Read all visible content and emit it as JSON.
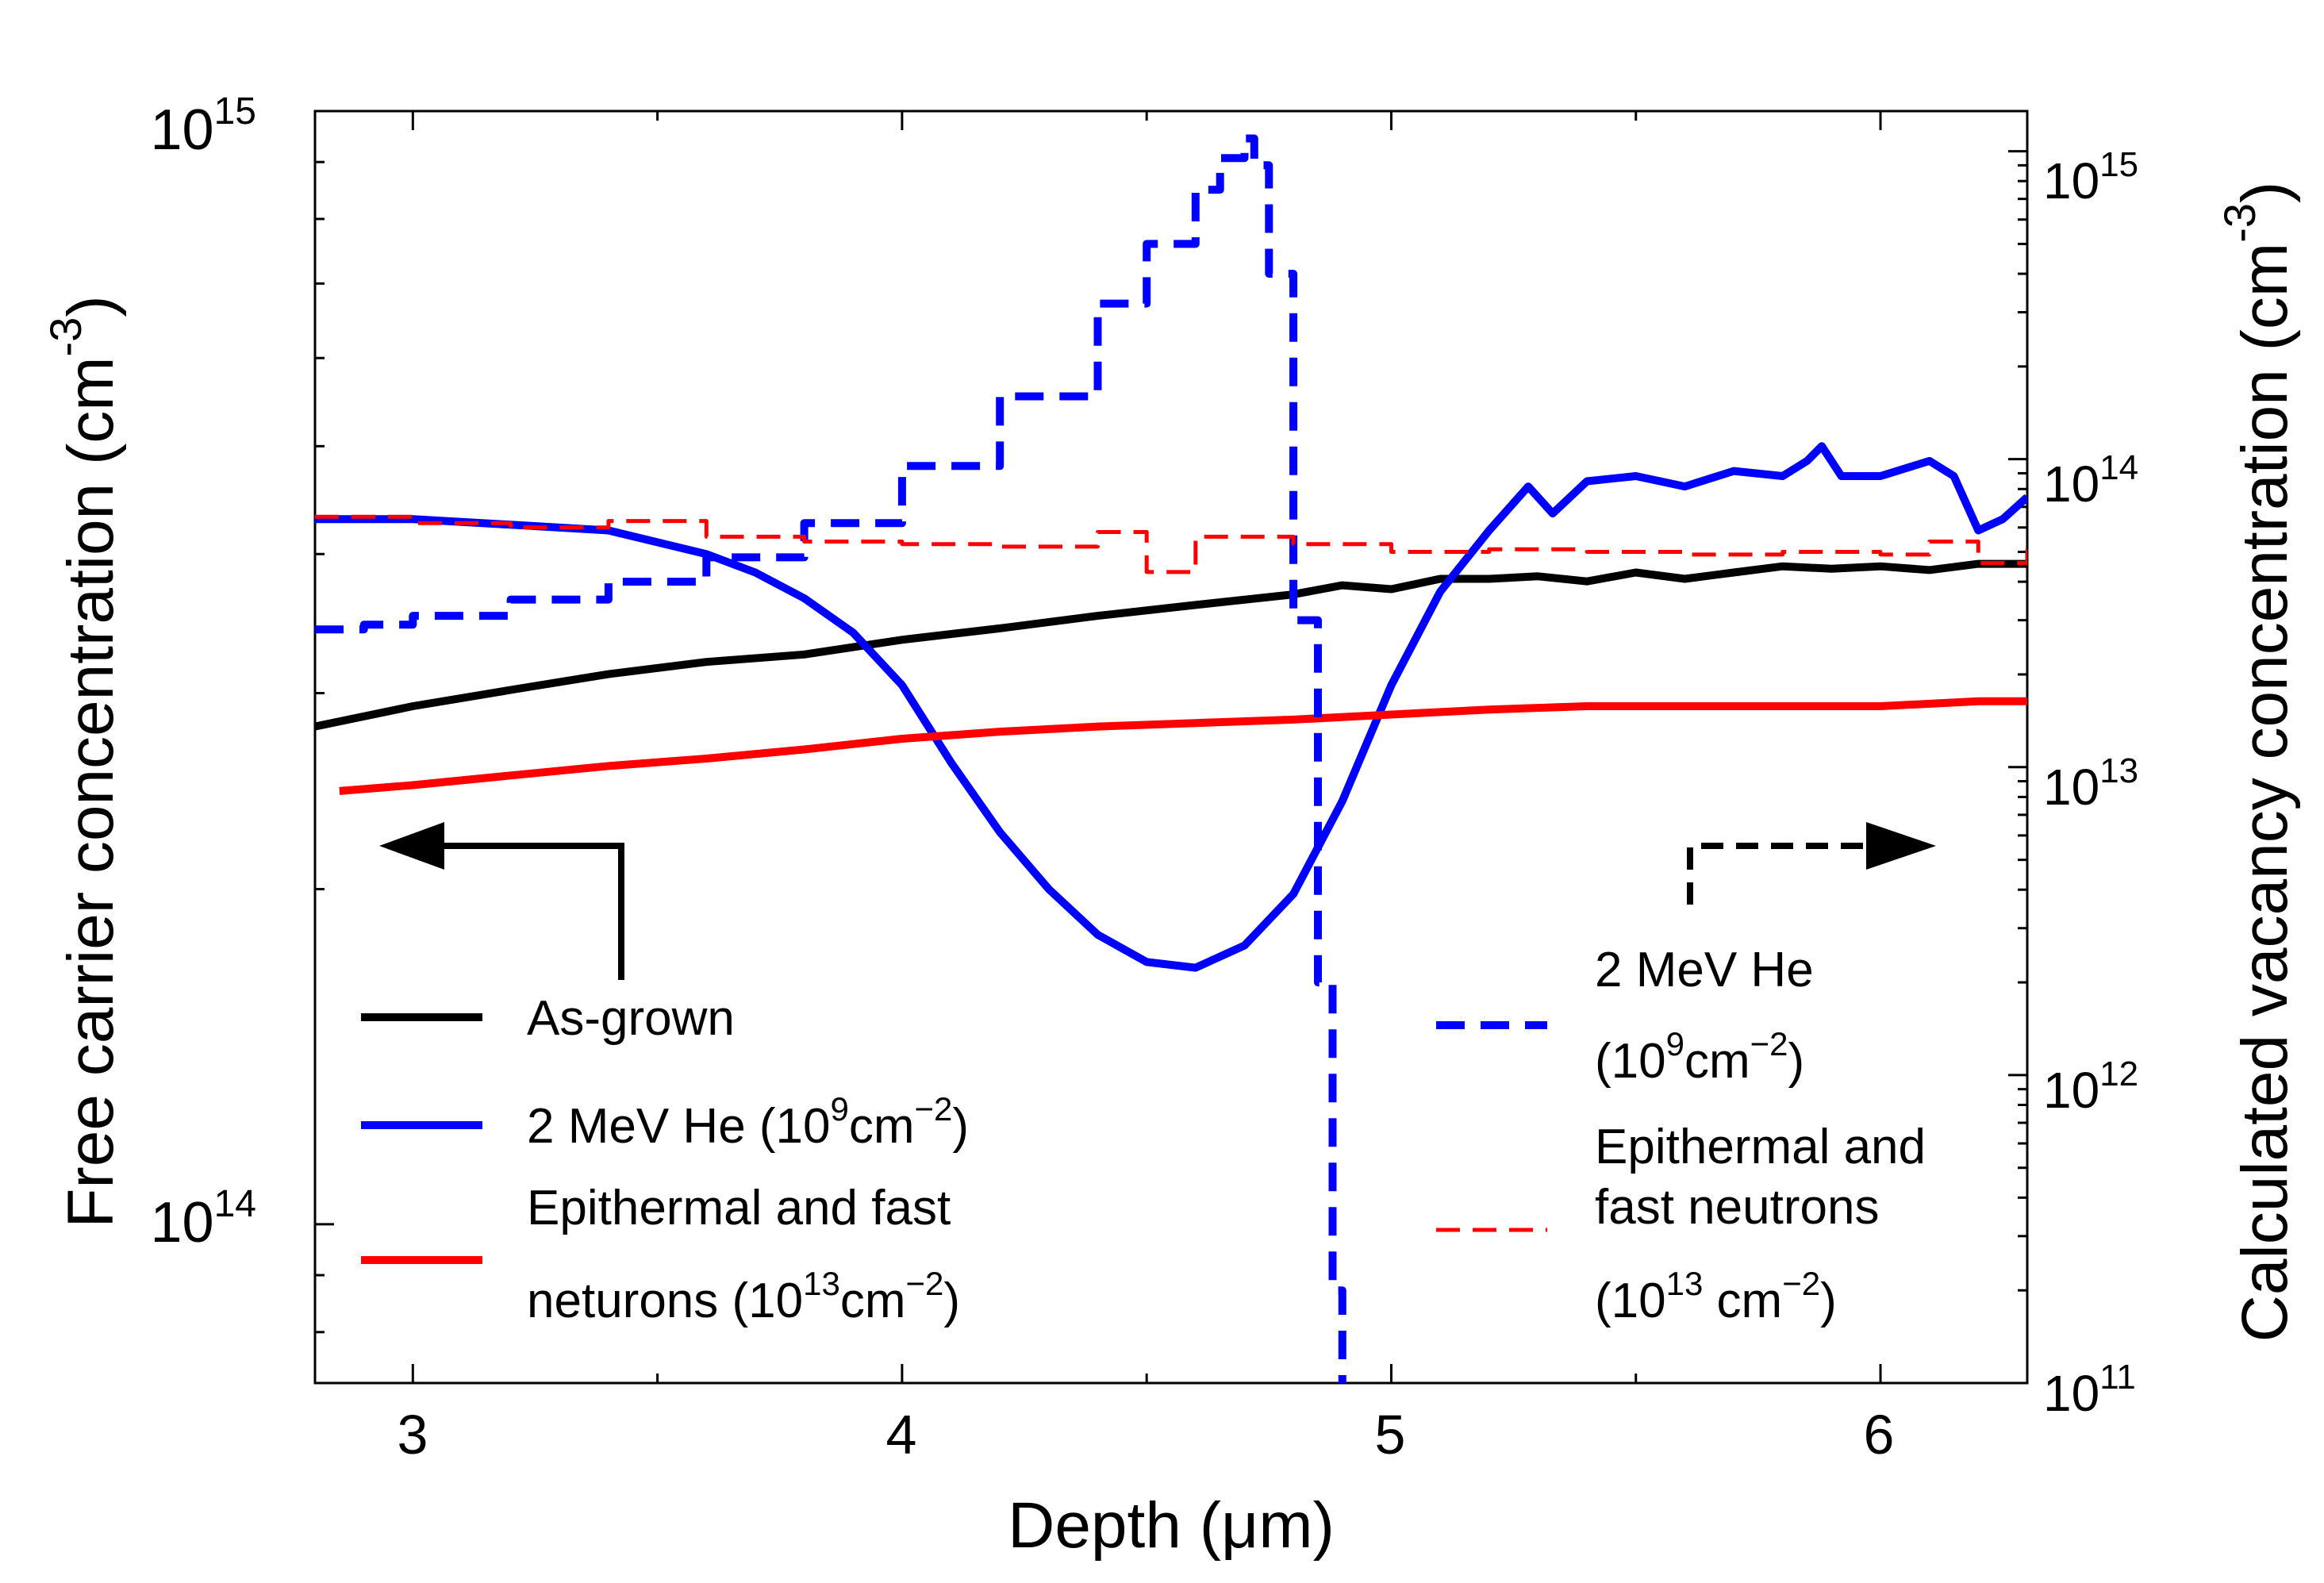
{
  "chart_data": {
    "type": "line",
    "xlabel": "Depth (μm)",
    "ylabel_left": "Free carrier concentration (cm",
    "ylabel_left_exp": "-3",
    "ylabel_left_close": ")",
    "ylabel_right": "Calculated vacancy concentration (cm",
    "ylabel_right_exp": "-3",
    "ylabel_right_close": ")",
    "x_ticks": [
      "3",
      "4",
      "5",
      "6"
    ],
    "xlim": [
      2.8,
      6.3
    ],
    "y_left": {
      "scale": "log",
      "lim": [
        72000000000000.0,
        1000000000000000.0
      ],
      "major_ticks": [
        {
          "base": "10",
          "exp": "14"
        },
        {
          "base": "10",
          "exp": "15"
        }
      ]
    },
    "y_right": {
      "scale": "log",
      "lim": [
        100000000000.0,
        1350000000000000.0
      ],
      "major_ticks": [
        {
          "base": "10",
          "exp": "11"
        },
        {
          "base": "10",
          "exp": "12"
        },
        {
          "base": "10",
          "exp": "13"
        },
        {
          "base": "10",
          "exp": "14"
        },
        {
          "base": "10",
          "exp": "15"
        }
      ]
    },
    "series": [
      {
        "key": "as_grown",
        "axis": "left",
        "style": "solid",
        "color": "#000000",
        "x": [
          2.8,
          3.0,
          3.2,
          3.4,
          3.6,
          3.8,
          4.0,
          4.2,
          4.4,
          4.6,
          4.8,
          4.9,
          5.0,
          5.1,
          5.2,
          5.3,
          5.4,
          5.5,
          5.6,
          5.7,
          5.8,
          5.9,
          6.0,
          6.1,
          6.2,
          6.3
        ],
        "y": [
          280000000000000.0,
          292000000000000.0,
          302000000000000.0,
          312000000000000.0,
          320000000000000.0,
          325000000000000.0,
          335000000000000.0,
          343000000000000.0,
          352000000000000.0,
          360000000000000.0,
          368000000000000.0,
          375000000000000.0,
          372000000000000.0,
          380000000000000.0,
          380000000000000.0,
          382000000000000.0,
          378000000000000.0,
          385000000000000.0,
          380000000000000.0,
          385000000000000.0,
          390000000000000.0,
          388000000000000.0,
          390000000000000.0,
          387000000000000.0,
          392000000000000.0,
          392000000000000.0
        ]
      },
      {
        "key": "he_carrier",
        "axis": "left",
        "style": "solid",
        "color": "#0000ff",
        "x": [
          2.8,
          3.0,
          3.2,
          3.4,
          3.6,
          3.7,
          3.8,
          3.9,
          4.0,
          4.1,
          4.2,
          4.3,
          4.4,
          4.5,
          4.6,
          4.7,
          4.8,
          4.9,
          5.0,
          5.1,
          5.2,
          5.28,
          5.33,
          5.4,
          5.5,
          5.6,
          5.7,
          5.8,
          5.85,
          5.88,
          5.92,
          6.0,
          6.1,
          6.15,
          6.2,
          6.25,
          6.3
        ],
        "y": [
          430000000000000.0,
          430000000000000.0,
          425000000000000.0,
          420000000000000.0,
          400000000000000.0,
          385000000000000.0,
          365000000000000.0,
          340000000000000.0,
          305000000000000.0,
          260000000000000.0,
          225000000000000.0,
          200000000000000.0,
          182000000000000.0,
          172000000000000.0,
          170000000000000.0,
          178000000000000.0,
          198000000000000.0,
          240000000000000.0,
          305000000000000.0,
          370000000000000.0,
          420000000000000.0,
          460000000000000.0,
          435000000000000.0,
          465000000000000.0,
          470000000000000.0,
          460000000000000.0,
          475000000000000.0,
          470000000000000.0,
          485000000000000.0,
          500000000000000.0,
          470000000000000.0,
          470000000000000.0,
          485000000000000.0,
          470000000000000.0,
          420000000000000.0,
          430000000000000.0,
          450000000000000.0
        ]
      },
      {
        "key": "neutron_carrier",
        "axis": "left",
        "style": "solid",
        "color": "#ff0000",
        "x": [
          2.85,
          3.0,
          3.2,
          3.4,
          3.6,
          3.8,
          4.0,
          4.2,
          4.4,
          4.6,
          4.8,
          5.0,
          5.2,
          5.4,
          5.6,
          5.8,
          6.0,
          6.2,
          6.3
        ],
        "y": [
          245000000000000.0,
          248000000000000.0,
          253000000000000.0,
          258000000000000.0,
          262000000000000.0,
          267000000000000.0,
          273000000000000.0,
          277000000000000.0,
          280000000000000.0,
          282000000000000.0,
          284000000000000.0,
          287000000000000.0,
          290000000000000.0,
          292000000000000.0,
          292000000000000.0,
          292000000000000.0,
          292000000000000.0,
          295000000000000.0,
          295000000000000.0
        ]
      },
      {
        "key": "he_vacancy",
        "axis": "right",
        "style": "dashed",
        "color": "#0000ff",
        "x": [
          2.8,
          2.9,
          3.0,
          3.2,
          3.4,
          3.6,
          3.8,
          4.0,
          4.2,
          4.4,
          4.5,
          4.6,
          4.65,
          4.7,
          4.72,
          4.75,
          4.8,
          4.85,
          4.88,
          4.9
        ],
        "y": [
          28000000000000.0,
          29000000000000.0,
          31000000000000.0,
          35000000000000.0,
          40000000000000.0,
          48000000000000.0,
          62000000000000.0,
          95000000000000.0,
          160000000000000.0,
          320000000000000.0,
          500000000000000.0,
          750000000000000.0,
          950000000000000.0,
          1100000000000000.0,
          900000000000000.0,
          400000000000000.0,
          30000000000000.0,
          2000000000000.0,
          200000000000.0,
          100000000000.0
        ]
      },
      {
        "key": "neutron_vacancy",
        "axis": "right",
        "style": "dashed",
        "color": "#ff0000",
        "x": [
          2.8,
          3.0,
          3.2,
          3.4,
          3.6,
          3.8,
          4.0,
          4.2,
          4.4,
          4.5,
          4.6,
          4.8,
          5.0,
          5.2,
          5.4,
          5.6,
          5.8,
          6.0,
          6.1,
          6.2,
          6.3
        ],
        "y": [
          65000000000000.0,
          62000000000000.0,
          60000000000000.0,
          63000000000000.0,
          56000000000000.0,
          54000000000000.0,
          53000000000000.0,
          52000000000000.0,
          58000000000000.0,
          43000000000000.0,
          56000000000000.0,
          53000000000000.0,
          50000000000000.0,
          51000000000000.0,
          50000000000000.0,
          49000000000000.0,
          50000000000000.0,
          49000000000000.0,
          54000000000000.0,
          46000000000000.0,
          55000000000000.0
        ]
      }
    ],
    "legend_left": [
      {
        "key": "as_grown",
        "label": "As-grown"
      },
      {
        "key": "he_carrier",
        "label": "2 MeV He (10",
        "sup1": "9",
        "mid": "cm",
        "sup2": "−2",
        "tail": ")"
      },
      {
        "key": "neutron_carrier",
        "line1": "Epithermal and fast",
        "line2": "neturons (10",
        "sup1": "13",
        "mid": "cm",
        "sup2": "−2",
        "tail": ")"
      }
    ],
    "legend_right": [
      {
        "key": "he_vacancy",
        "line1": "2 MeV He",
        "line2": "(10",
        "sup1": "9",
        "mid": "cm",
        "sup2": "−2",
        "tail": ")"
      },
      {
        "key": "neutron_vacancy",
        "line1": "Epithermal and",
        "line2": "fast neutrons",
        "line3": "(10",
        "sup1": "13",
        "mid": " cm",
        "sup2": "−2",
        "tail": ")"
      }
    ]
  }
}
